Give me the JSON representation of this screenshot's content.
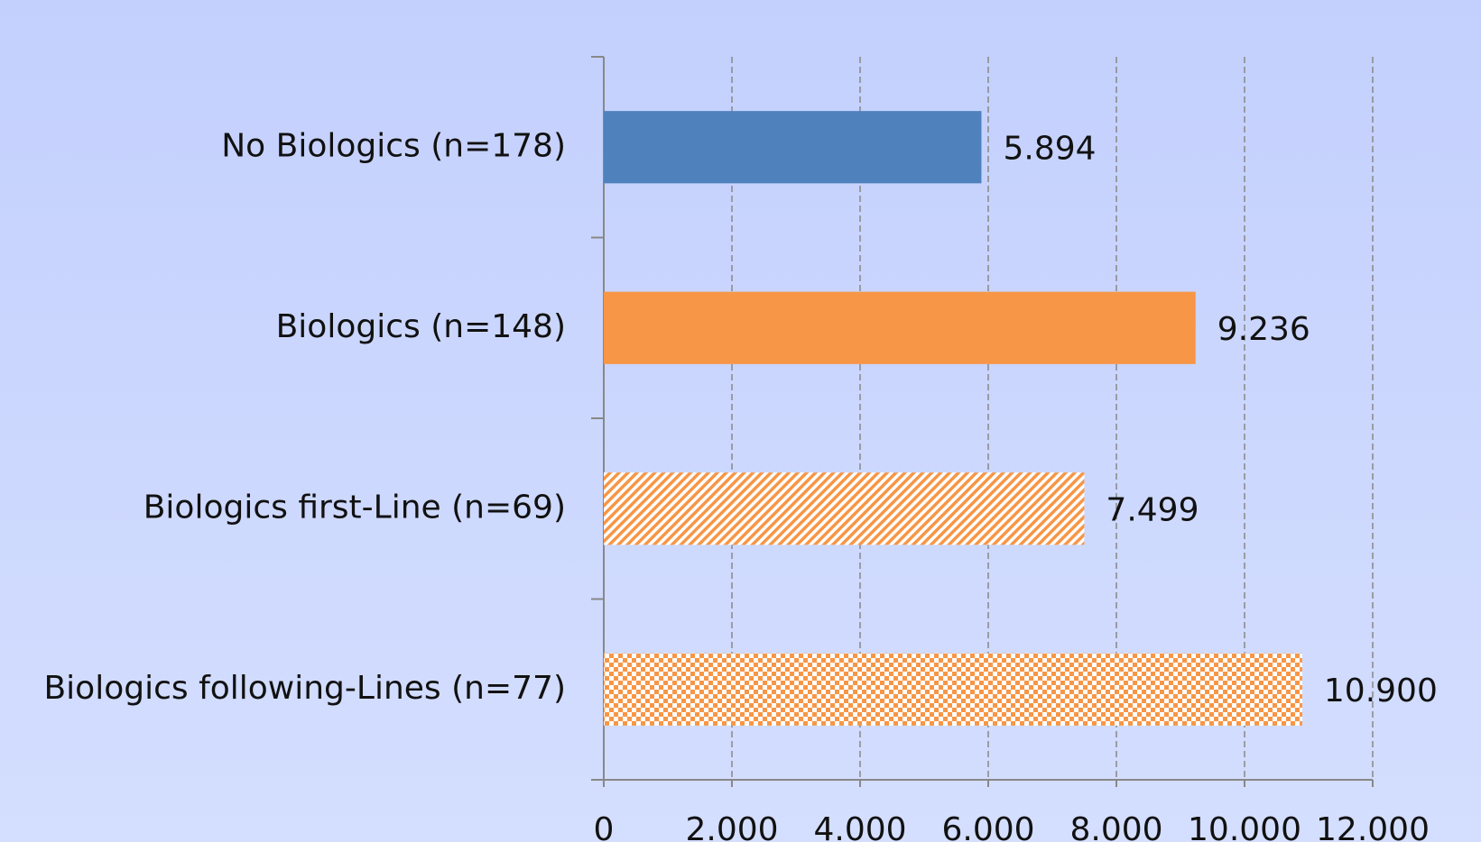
{
  "chart_data": {
    "type": "hbar",
    "categories": [
      "No Biologics (n=178)",
      "Biologics (n=148)",
      "Biologics first-Line (n=69)",
      "Biologics following-Lines (n=77)"
    ],
    "values": [
      5894,
      9236,
      7499,
      10900
    ],
    "value_labels": [
      "5.894",
      "9.236",
      "7.499",
      "10.900"
    ],
    "colors": [
      "#4f81bd",
      "#f79646",
      "#f79646",
      "#f79646"
    ],
    "patterns": [
      "solid",
      "solid",
      "diagonal",
      "checker"
    ],
    "xlim": [
      0,
      12000
    ],
    "xticks": [
      0,
      {
        "value": 2000,
        "label": "2.000"
      },
      {
        "value": 4000,
        "label": "4.000"
      },
      {
        "value": 6000,
        "label": "6.000"
      },
      {
        "value": 8000,
        "label": "8.000"
      },
      {
        "value": 10000,
        "label": "10.000"
      },
      {
        "value": 12000,
        "label": "12.000"
      }
    ],
    "grid": true
  }
}
